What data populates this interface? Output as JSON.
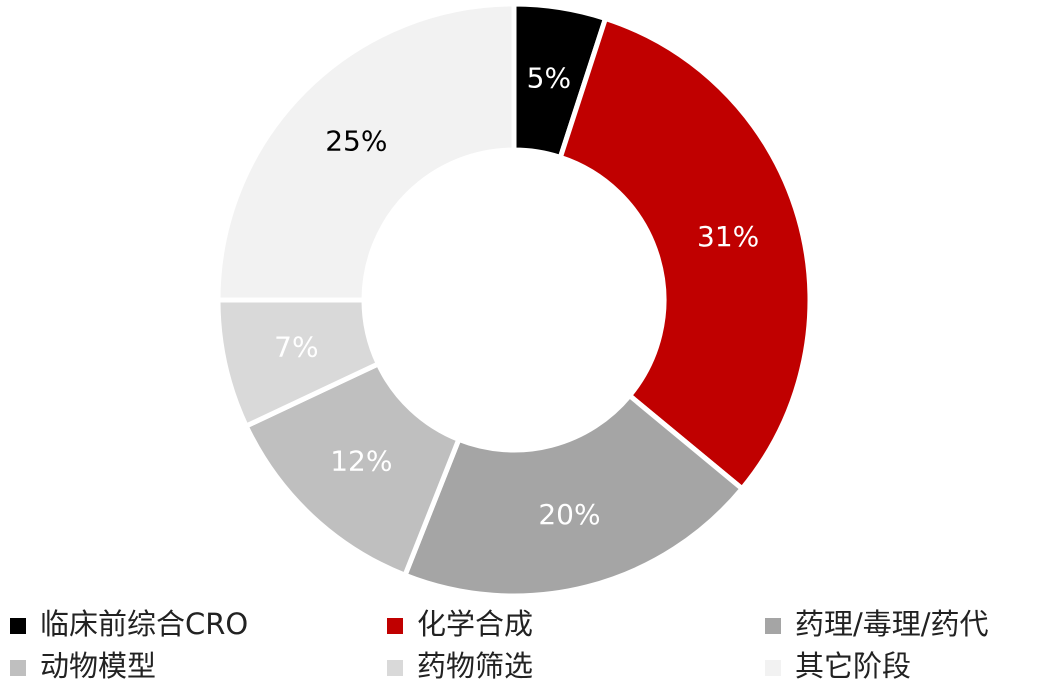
{
  "chart_data": {
    "type": "donut",
    "categories": [
      "临床前综合CRO",
      "化学合成",
      "药理/毒理/药代",
      "动物模型",
      "药物筛选",
      "其它阶段"
    ],
    "values": [
      5,
      31,
      20,
      12,
      7,
      25
    ],
    "value_labels": [
      "5%",
      "31%",
      "20%",
      "12%",
      "7%",
      "25%"
    ],
    "colors": [
      "#000000",
      "#c00000",
      "#a5a5a5",
      "#bfbfbf",
      "#d9d9d9",
      "#f2f2f2"
    ],
    "label_colors": [
      "#ffffff",
      "#ffffff",
      "#ffffff",
      "#ffffff",
      "#ffffff",
      "#000000"
    ],
    "legend": "bottom"
  }
}
